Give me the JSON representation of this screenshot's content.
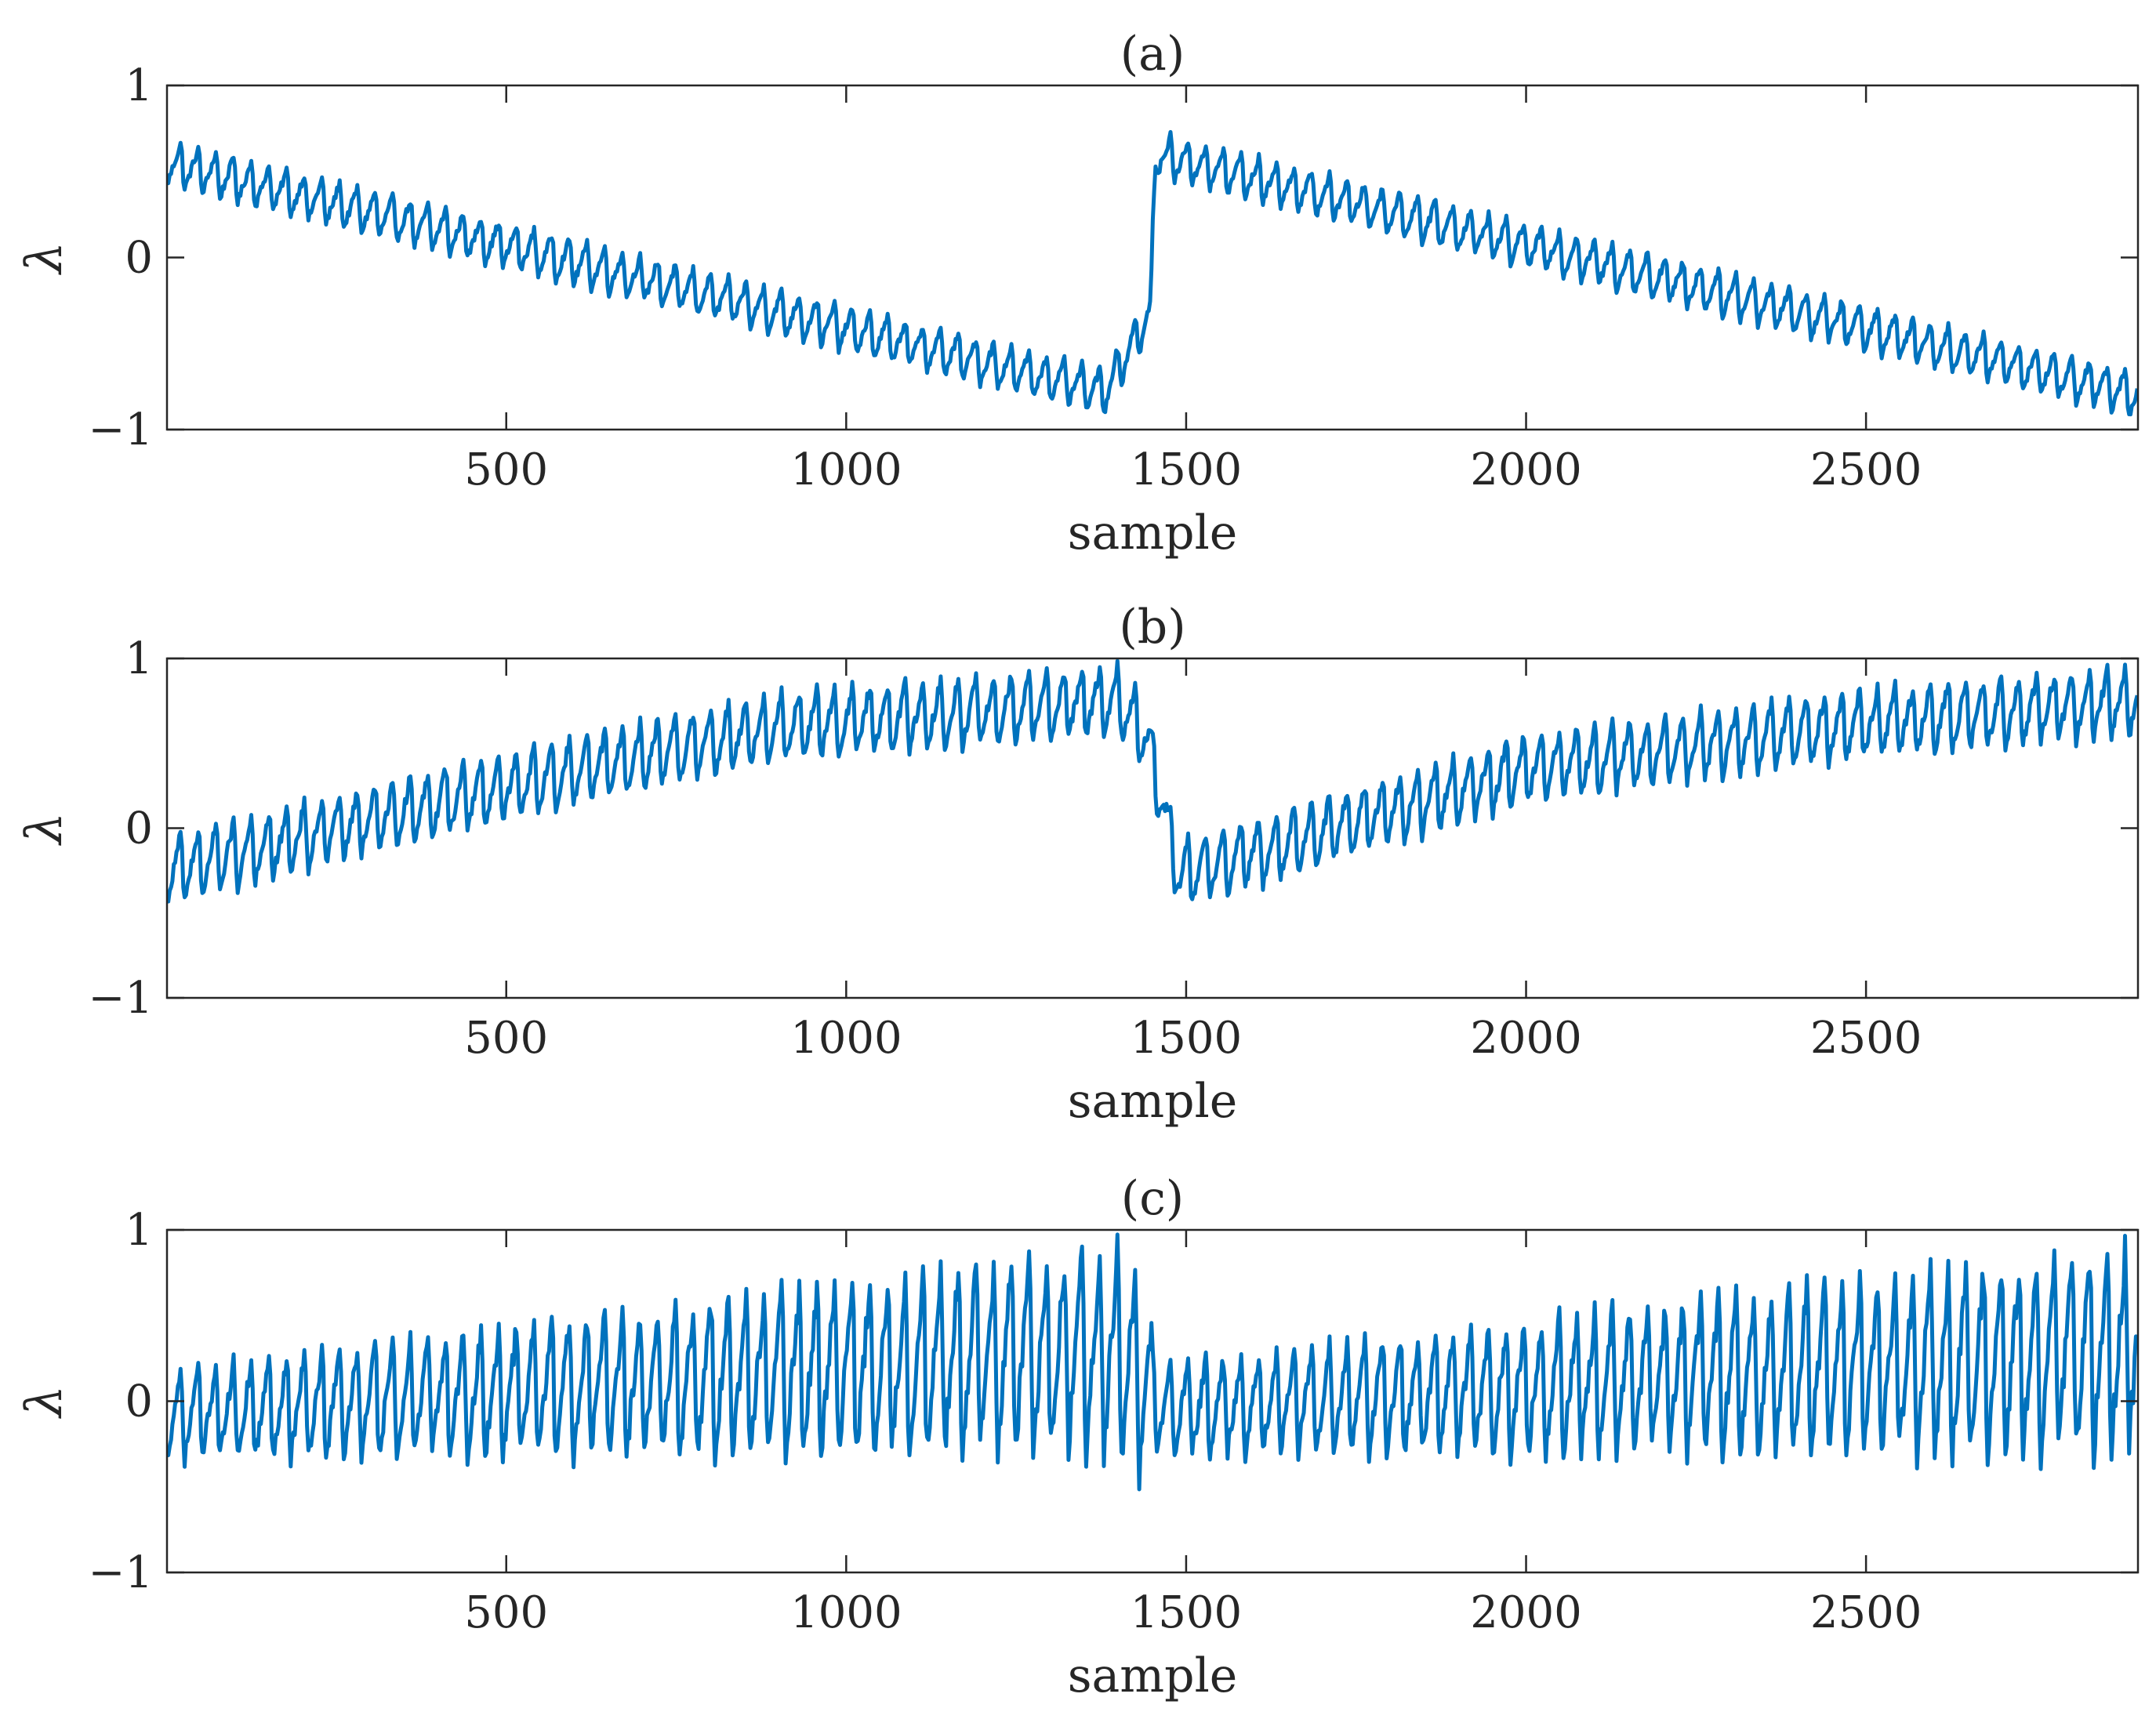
{
  "colors": {
    "line": "#0072bd",
    "axis": "#262626",
    "background": "#ffffff"
  },
  "chart_data": [
    {
      "type": "line",
      "title": "(a)",
      "xlabel": "sample",
      "ylabel": "λ",
      "xlim": [
        1,
        2900
      ],
      "ylim": [
        -1,
        1
      ],
      "xticks": [
        500,
        1000,
        1500,
        2000,
        2500
      ],
      "xtick_labels": [
        "500",
        "1000",
        "1500",
        "2000",
        "2500"
      ],
      "yticks": [
        -1,
        0,
        1
      ],
      "ytick_labels": [
        "−1",
        "0",
        "1"
      ],
      "grid": false,
      "series": [
        {
          "name": "λ",
          "description": "sawtooth-modulated signal; trend falls from ~0.55 to ~-0.75 over samples 1-1380, recovers to ~-0.3 by 1450, jumps to ~0.6 at 1455, falls again to ~-0.8 at 2900",
          "envelope_center": [
            [
              1,
              0.55
            ],
            [
              1380,
              -0.78
            ],
            [
              1448,
              -0.32
            ],
            [
              1455,
              0.6
            ],
            [
              2900,
              -0.8
            ]
          ],
          "ripple_amplitude": 0.14,
          "ripple_period": 26
        }
      ]
    },
    {
      "type": "line",
      "title": "(b)",
      "xlabel": "sample",
      "ylabel": "λ",
      "xlim": [
        1,
        2900
      ],
      "ylim": [
        -1,
        1
      ],
      "xticks": [
        500,
        1000,
        1500,
        2000,
        2500
      ],
      "xtick_labels": [
        "500",
        "1000",
        "1500",
        "2000",
        "2500"
      ],
      "yticks": [
        -1,
        0,
        1
      ],
      "ytick_labels": [
        "−1",
        "0",
        "1"
      ],
      "grid": false,
      "series": [
        {
          "name": "λ",
          "description": "sawtooth-modulated signal; trend rises from ~-0.25 to ~0.75 over samples 1-1400, drops to ~-0.3 near 1480, rises again to ~0.75 at 2900",
          "envelope_center": [
            [
              1,
              -0.25
            ],
            [
              400,
              0.15
            ],
            [
              900,
              0.6
            ],
            [
              1400,
              0.75
            ],
            [
              1440,
              0.55
            ],
            [
              1490,
              -0.28
            ],
            [
              2000,
              0.35
            ],
            [
              2500,
              0.62
            ],
            [
              2900,
              0.75
            ]
          ],
          "ripple_amplitude": 0.22,
          "ripple_period": 26
        }
      ]
    },
    {
      "type": "line",
      "title": "(c)",
      "xlabel": "sample",
      "ylabel": "λ",
      "xlim": [
        1,
        2900
      ],
      "ylim": [
        -1,
        1
      ],
      "xticks": [
        500,
        1000,
        1500,
        2000,
        2500
      ],
      "xtick_labels": [
        "500",
        "1000",
        "1500",
        "2000",
        "2500"
      ],
      "yticks": [
        -1,
        0,
        1
      ],
      "ytick_labels": [
        "−1",
        "0",
        "1"
      ],
      "grid": false,
      "series": [
        {
          "name": "λ",
          "description": "large sawtooth oscillation around a slowly rising baseline; amplitude grows toward sample 1350 (peaks near 1.0), resets at ~1450, grows again to ~0.95 by 2850",
          "envelope_center": [
            [
              1,
              -0.08
            ],
            [
              1400,
              0.3
            ],
            [
              1460,
              -0.05
            ],
            [
              2900,
              0.3
            ]
          ],
          "ripple_amplitude_start": 0.28,
          "ripple_amplitude_end": 0.65,
          "ripple_period": 26
        }
      ]
    }
  ]
}
